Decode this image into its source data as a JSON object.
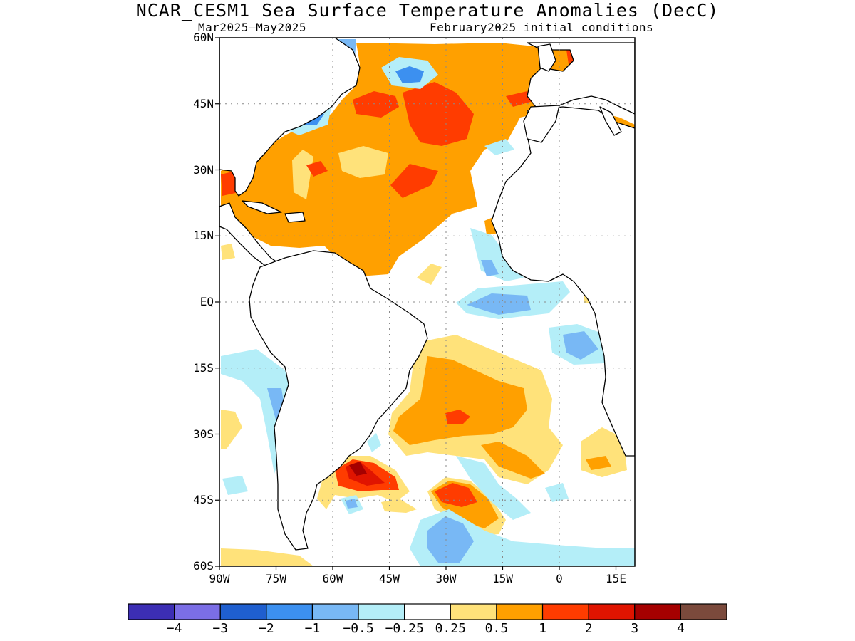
{
  "header": {
    "title": "NCAR_CESM1 Sea Surface Temperature Anomalies (DecC)",
    "period": "Mar2025–May2025",
    "init": "February2025 initial conditions"
  },
  "map": {
    "projection": "lat-lon",
    "lon_range": [
      -90,
      20
    ],
    "lat_range": [
      -60,
      60
    ],
    "lat_ticks": [
      {
        "v": 60,
        "label": "60N"
      },
      {
        "v": 45,
        "label": "45N"
      },
      {
        "v": 30,
        "label": "30N"
      },
      {
        "v": 15,
        "label": "15N"
      },
      {
        "v": 0,
        "label": "EQ"
      },
      {
        "v": -15,
        "label": "15S"
      },
      {
        "v": -30,
        "label": "30S"
      },
      {
        "v": -45,
        "label": "45S"
      },
      {
        "v": -60,
        "label": "60S"
      }
    ],
    "lon_ticks": [
      {
        "v": -90,
        "label": "90W"
      },
      {
        "v": -75,
        "label": "75W"
      },
      {
        "v": -60,
        "label": "60W"
      },
      {
        "v": -45,
        "label": "45W"
      },
      {
        "v": -30,
        "label": "30W"
      },
      {
        "v": -15,
        "label": "15W"
      },
      {
        "v": 0,
        "label": "0"
      },
      {
        "v": 15,
        "label": "15E"
      }
    ],
    "grid": "dotted",
    "colors": {
      "land": "#ffffff",
      "coast": "#000000"
    }
  },
  "colorbar": {
    "colors": [
      "#3c2eb4",
      "#7b6ee6",
      "#1f5fcf",
      "#3c90f0",
      "#78b8f5",
      "#b4eef8",
      "#ffffff",
      "#ffe27a",
      "#ffa000",
      "#ff3c00",
      "#e01400",
      "#a50000",
      "#7b4a3c"
    ],
    "labels": [
      "−4",
      "−3",
      "−2",
      "−1",
      "−0.5",
      "−0.25",
      "0.25",
      "0.5",
      "1",
      "2",
      "3",
      "4"
    ]
  }
}
